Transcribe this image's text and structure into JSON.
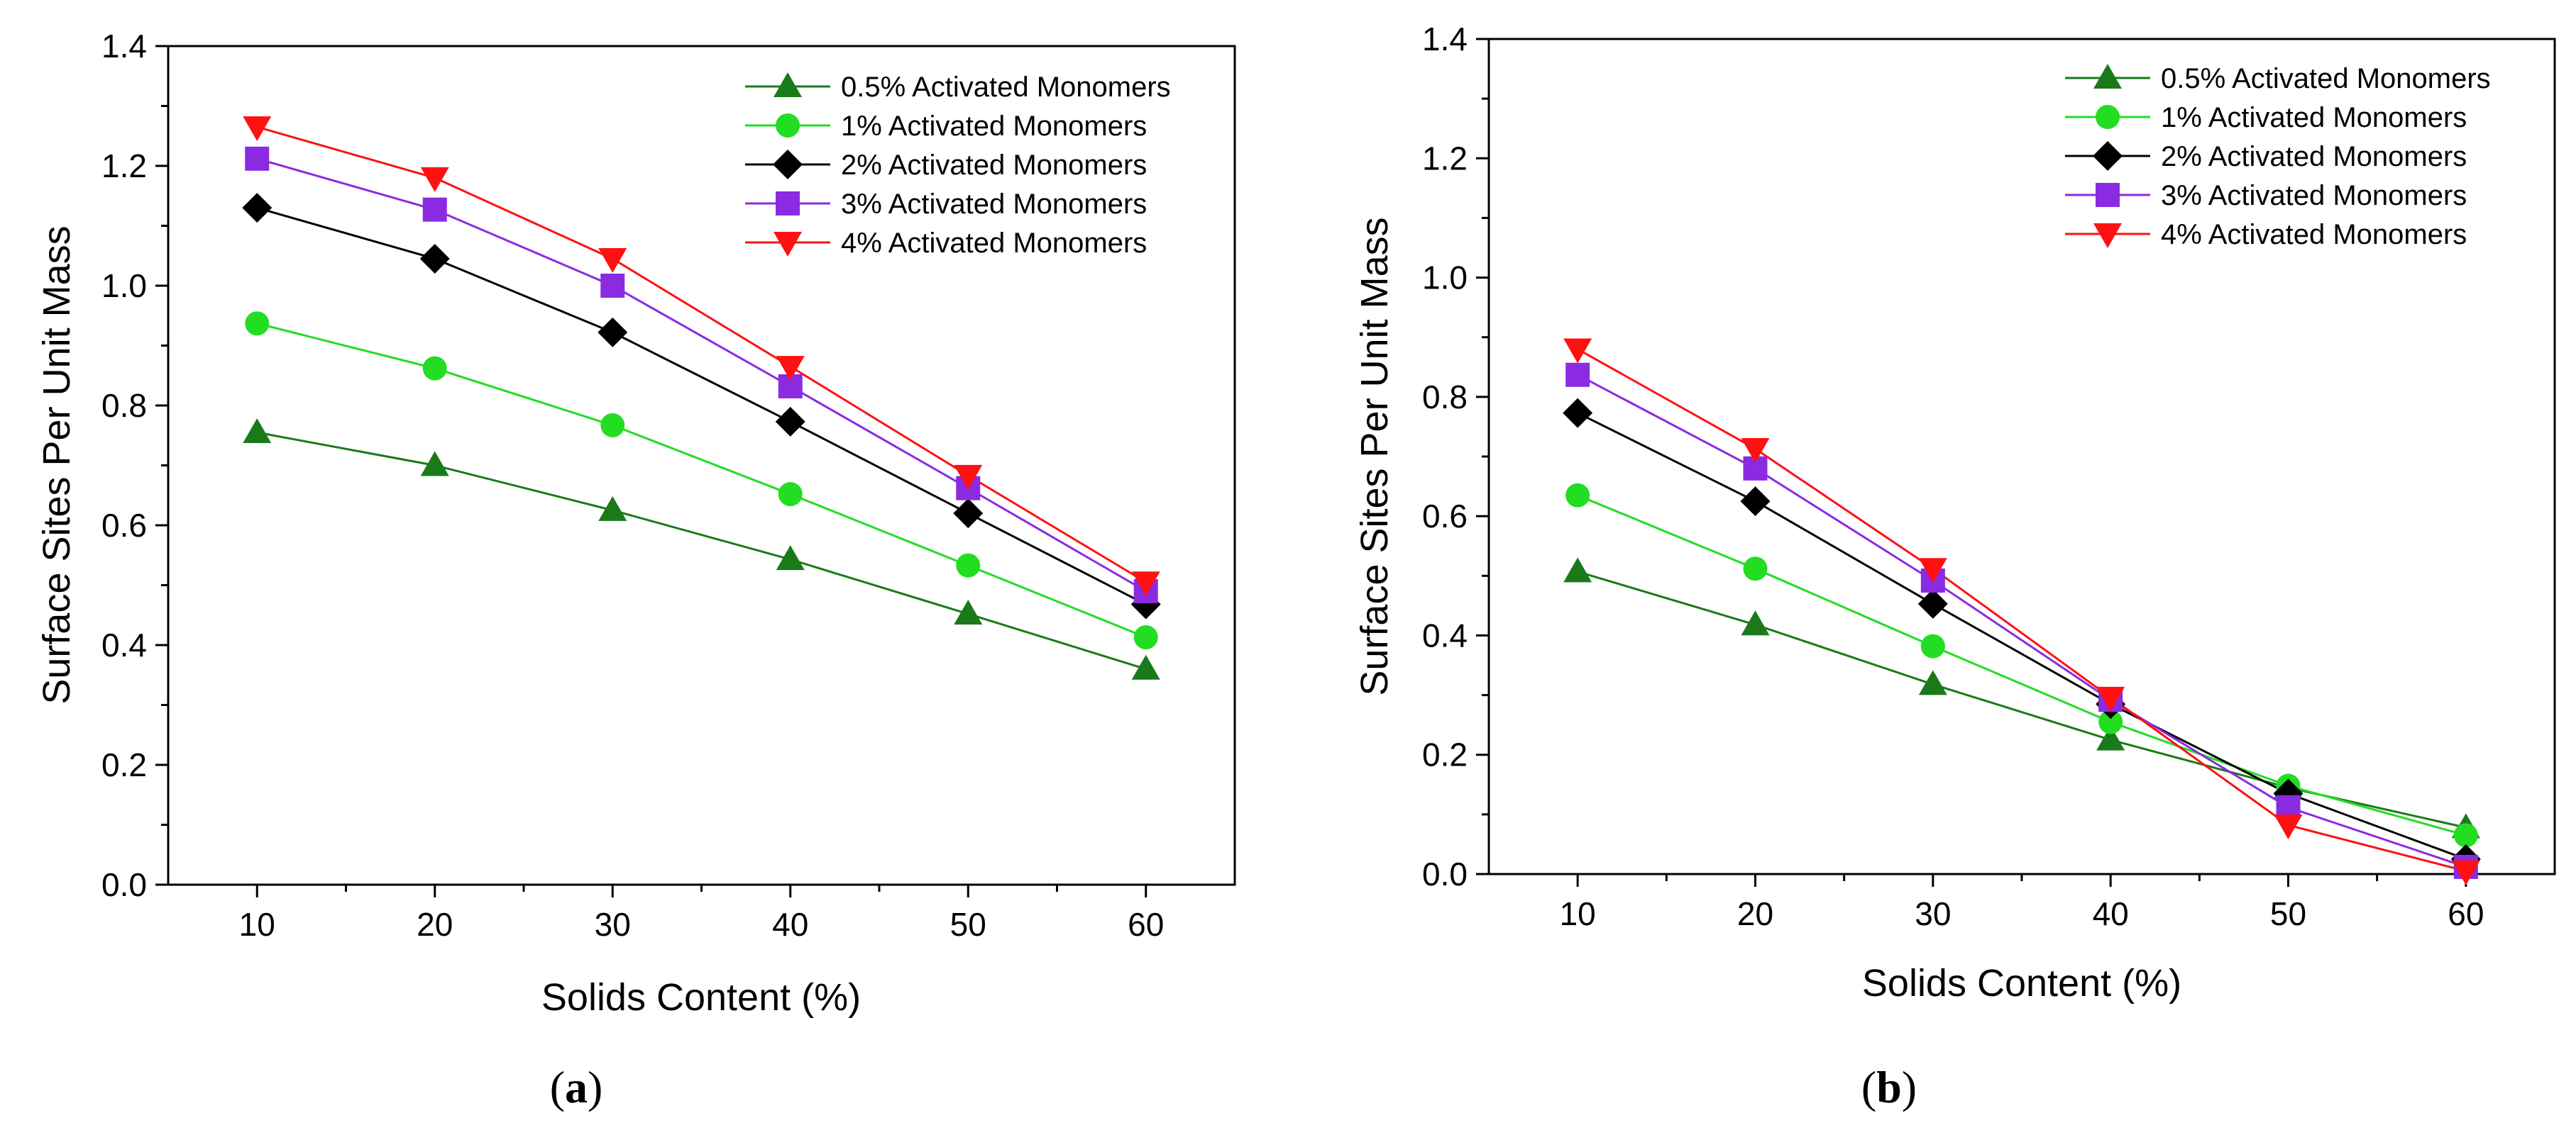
{
  "chart_data": [
    {
      "type": "line",
      "panel_label": "a",
      "xlabel": "Solids Content (%)",
      "ylabel": "Surface Sites Per Unit Mass",
      "x": [
        10,
        20,
        30,
        40,
        50,
        60
      ],
      "xlim": [
        5,
        65
      ],
      "ylim": [
        0.0,
        1.4
      ],
      "xticks": [
        "10",
        "20",
        "30",
        "40",
        "50",
        "60"
      ],
      "yticks": [
        "0.0",
        "0.2",
        "0.4",
        "0.6",
        "0.8",
        "1.0",
        "1.2",
        "1.4"
      ],
      "legend_position": "top-right",
      "series": [
        {
          "name": "0.5% Activated Monomers",
          "color": "#1a7a1a",
          "marker": "triangle-up",
          "values": [
            0.755,
            0.7,
            0.625,
            0.543,
            0.452,
            0.36
          ]
        },
        {
          "name": "1% Activated Monomers",
          "color": "#22dd22",
          "marker": "circle",
          "values": [
            0.937,
            0.862,
            0.767,
            0.652,
            0.533,
            0.413
          ]
        },
        {
          "name": "2% Activated Monomers",
          "color": "#000000",
          "marker": "diamond",
          "values": [
            1.13,
            1.045,
            0.922,
            0.773,
            0.62,
            0.468
          ]
        },
        {
          "name": "3% Activated Monomers",
          "color": "#8a2be2",
          "marker": "square",
          "values": [
            1.212,
            1.127,
            1.0,
            0.832,
            0.662,
            0.49
          ]
        },
        {
          "name": "4% Activated Monomers",
          "color": "#ff1111",
          "marker": "triangle-down",
          "values": [
            1.265,
            1.18,
            1.045,
            0.865,
            0.683,
            0.505
          ]
        }
      ]
    },
    {
      "type": "line",
      "panel_label": "b",
      "xlabel": "Solids Content (%)",
      "ylabel": "Surface Sites Per Unit Mass",
      "x": [
        10,
        20,
        30,
        40,
        50,
        60
      ],
      "xlim": [
        5,
        65
      ],
      "ylim": [
        0.0,
        1.4
      ],
      "xticks": [
        "10",
        "20",
        "30",
        "40",
        "50",
        "60"
      ],
      "yticks": [
        "0.0",
        "0.2",
        "0.4",
        "0.6",
        "0.8",
        "1.0",
        "1.2",
        "1.4"
      ],
      "legend_position": "top-right",
      "series": [
        {
          "name": "0.5% Activated Monomers",
          "color": "#1a7a1a",
          "marker": "triangle-up",
          "values": [
            0.507,
            0.418,
            0.318,
            0.225,
            0.145,
            0.078
          ]
        },
        {
          "name": "1% Activated Monomers",
          "color": "#22dd22",
          "marker": "circle",
          "values": [
            0.635,
            0.512,
            0.382,
            0.255,
            0.148,
            0.065
          ]
        },
        {
          "name": "2% Activated Monomers",
          "color": "#000000",
          "marker": "diamond",
          "values": [
            0.773,
            0.625,
            0.453,
            0.285,
            0.135,
            0.025
          ]
        },
        {
          "name": "3% Activated Monomers",
          "color": "#8a2be2",
          "marker": "square",
          "values": [
            0.837,
            0.68,
            0.492,
            0.292,
            0.112,
            0.012
          ]
        },
        {
          "name": "4% Activated Monomers",
          "color": "#ff1111",
          "marker": "triangle-down",
          "values": [
            0.88,
            0.713,
            0.512,
            0.296,
            0.082,
            0.005
          ]
        }
      ]
    }
  ]
}
